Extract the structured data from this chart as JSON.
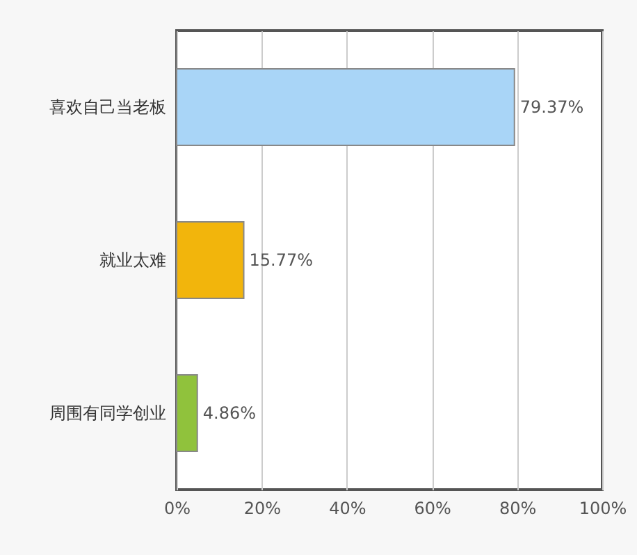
{
  "chart_data": {
    "type": "bar",
    "orientation": "horizontal",
    "categories": [
      "喜欢自己当老板",
      "就业太难",
      "周围有同学创业"
    ],
    "values": [
      79.37,
      15.77,
      4.86
    ],
    "colors": [
      "#a9d5f7",
      "#f2b50c",
      "#90c23c"
    ],
    "value_labels": [
      "79.37%",
      "15.77%",
      "4.86%"
    ],
    "xlim": [
      0,
      100
    ],
    "xticks": [
      {
        "value": 0,
        "label": "0%"
      },
      {
        "value": 20,
        "label": "20%"
      },
      {
        "value": 40,
        "label": "40%"
      },
      {
        "value": 60,
        "label": "60%"
      },
      {
        "value": 80,
        "label": "80%"
      },
      {
        "value": 100,
        "label": "100%"
      }
    ],
    "grid": "x"
  }
}
